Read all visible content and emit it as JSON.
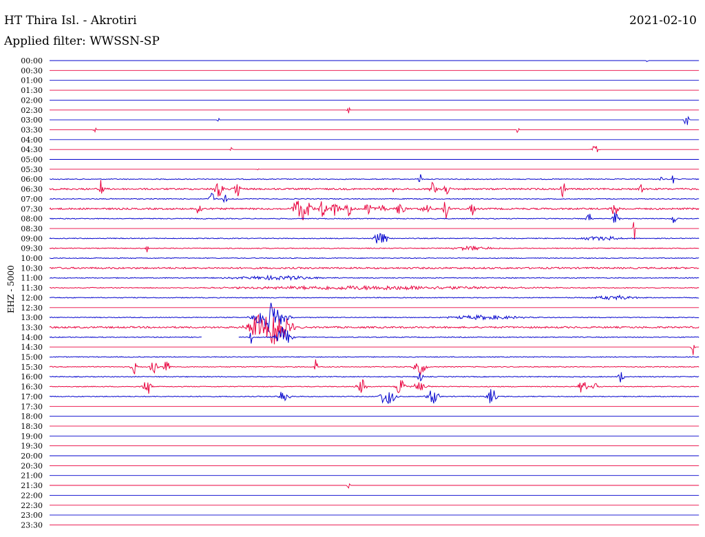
{
  "header": {
    "station": "HT Thira Isl. - Akrotiri",
    "filter": "Applied filter: WWSSN-SP",
    "date": "2021-02-10"
  },
  "chart_data": {
    "type": "helicorder",
    "ylabel": "EHZ - 5000",
    "colors": {
      "blue": "#0000cc",
      "red": "#e8003d"
    },
    "rows": [
      "00:00",
      "00:30",
      "01:00",
      "01:30",
      "02:00",
      "02:30",
      "03:00",
      "03:30",
      "04:00",
      "04:30",
      "05:00",
      "05:30",
      "06:00",
      "06:30",
      "07:00",
      "07:30",
      "08:00",
      "08:30",
      "09:00",
      "09:30",
      "10:00",
      "10:30",
      "11:00",
      "11:30",
      "12:00",
      "12:30",
      "13:00",
      "13:30",
      "14:00",
      "14:30",
      "15:00",
      "15:30",
      "16:00",
      "16:30",
      "17:00",
      "17:30",
      "18:00",
      "18:30",
      "19:00",
      "19:30",
      "20:00",
      "20:30",
      "21:00",
      "21:30",
      "22:00",
      "22:30",
      "23:00",
      "23:30"
    ],
    "row_minutes": 30,
    "noise": [
      0,
      0,
      0,
      0,
      0,
      0,
      0,
      0,
      0,
      0,
      0,
      0,
      1,
      2,
      1,
      2,
      1,
      0,
      1,
      1,
      1,
      2,
      1,
      1,
      1,
      0,
      1,
      2,
      1,
      0,
      1,
      1,
      1,
      1,
      1,
      0,
      0,
      0,
      0,
      0,
      0,
      0,
      0,
      0,
      0,
      0,
      0,
      0
    ],
    "events": [
      {
        "row": 0,
        "t": 0.92,
        "amp": 2,
        "dur": 0.002
      },
      {
        "row": 5,
        "t": 0.46,
        "amp": 8,
        "dur": 0.002
      },
      {
        "row": 6,
        "t": 0.26,
        "amp": 3,
        "dur": 0.002
      },
      {
        "row": 6,
        "t": 0.98,
        "amp": 14,
        "dur": 0.003
      },
      {
        "row": 7,
        "t": 0.07,
        "amp": 6,
        "dur": 0.002
      },
      {
        "row": 7,
        "t": 0.72,
        "amp": 6,
        "dur": 0.002
      },
      {
        "row": 9,
        "t": 0.28,
        "amp": 6,
        "dur": 0.002
      },
      {
        "row": 9,
        "t": 0.84,
        "amp": 10,
        "dur": 0.004
      },
      {
        "row": 11,
        "t": 0.32,
        "amp": 3,
        "dur": 0.002
      },
      {
        "row": 12,
        "t": 0.57,
        "amp": 12,
        "dur": 0.002
      },
      {
        "row": 12,
        "t": 0.94,
        "amp": 6,
        "dur": 0.002
      },
      {
        "row": 12,
        "t": 0.96,
        "amp": 10,
        "dur": 0.002
      },
      {
        "row": 13,
        "t": 0.08,
        "amp": 18,
        "dur": 0.003
      },
      {
        "row": 13,
        "t": 0.26,
        "amp": 12,
        "dur": 0.006
      },
      {
        "row": 13,
        "t": 0.29,
        "amp": 12,
        "dur": 0.005
      },
      {
        "row": 13,
        "t": 0.53,
        "amp": 8,
        "dur": 0.002
      },
      {
        "row": 13,
        "t": 0.59,
        "amp": 10,
        "dur": 0.005
      },
      {
        "row": 13,
        "t": 0.61,
        "amp": 12,
        "dur": 0.004
      },
      {
        "row": 13,
        "t": 0.79,
        "amp": 12,
        "dur": 0.003
      },
      {
        "row": 13,
        "t": 0.91,
        "amp": 8,
        "dur": 0.003
      },
      {
        "row": 14,
        "t": 0.25,
        "amp": 10,
        "dur": 0.004
      },
      {
        "row": 14,
        "t": 0.27,
        "amp": 8,
        "dur": 0.003
      },
      {
        "row": 15,
        "t": 0.23,
        "amp": 10,
        "dur": 0.004
      },
      {
        "row": 15,
        "t": 0.38,
        "amp": 12,
        "dur": 0.005
      },
      {
        "row": 15,
        "t": 0.39,
        "amp": 16,
        "dur": 0.012
      },
      {
        "row": 15,
        "t": 0.42,
        "amp": 12,
        "dur": 0.006
      },
      {
        "row": 15,
        "t": 0.44,
        "amp": 10,
        "dur": 0.006
      },
      {
        "row": 15,
        "t": 0.46,
        "amp": 12,
        "dur": 0.005
      },
      {
        "row": 15,
        "t": 0.49,
        "amp": 10,
        "dur": 0.006
      },
      {
        "row": 15,
        "t": 0.51,
        "amp": 8,
        "dur": 0.008
      },
      {
        "row": 15,
        "t": 0.54,
        "amp": 12,
        "dur": 0.006
      },
      {
        "row": 15,
        "t": 0.58,
        "amp": 6,
        "dur": 0.008
      },
      {
        "row": 15,
        "t": 0.61,
        "amp": 14,
        "dur": 0.004
      },
      {
        "row": 15,
        "t": 0.65,
        "amp": 10,
        "dur": 0.004
      },
      {
        "row": 15,
        "t": 0.87,
        "amp": 10,
        "dur": 0.005
      },
      {
        "row": 16,
        "t": 0.87,
        "amp": 10,
        "dur": 0.005
      },
      {
        "row": 16,
        "t": 0.96,
        "amp": 8,
        "dur": 0.004
      },
      {
        "row": 16,
        "t": 0.83,
        "amp": 10,
        "dur": 0.004
      },
      {
        "row": 17,
        "t": 0.9,
        "amp": 16,
        "dur": 0.002
      },
      {
        "row": 18,
        "t": 0.51,
        "amp": 16,
        "dur": 0.008
      },
      {
        "row": 18,
        "t": 0.85,
        "amp": 3,
        "dur": 0.03
      },
      {
        "row": 19,
        "t": 0.15,
        "amp": 6,
        "dur": 0.002
      },
      {
        "row": 19,
        "t": 0.65,
        "amp": 3,
        "dur": 0.03
      },
      {
        "row": 22,
        "t": 0.35,
        "amp": 3,
        "dur": 0.06
      },
      {
        "row": 23,
        "t": 0.5,
        "amp": 3,
        "dur": 0.2
      },
      {
        "row": 24,
        "t": 0.87,
        "amp": 3,
        "dur": 0.03
      },
      {
        "row": 26,
        "t": 0.34,
        "amp": 22,
        "dur": 0.02
      },
      {
        "row": 26,
        "t": 0.67,
        "amp": 3,
        "dur": 0.05
      },
      {
        "row": 27,
        "t": 0.33,
        "amp": 24,
        "dur": 0.02
      },
      {
        "row": 27,
        "t": 0.35,
        "amp": 22,
        "dur": 0.02
      },
      {
        "row": 28,
        "t": 0.31,
        "amp": 10,
        "dur": 0.002
      },
      {
        "row": 28,
        "t": 0.36,
        "amp": 16,
        "dur": 0.01
      },
      {
        "row": 29,
        "t": 0.99,
        "amp": 12,
        "dur": 0.002
      },
      {
        "row": 31,
        "t": 0.13,
        "amp": 10,
        "dur": 0.004
      },
      {
        "row": 31,
        "t": 0.16,
        "amp": 12,
        "dur": 0.006
      },
      {
        "row": 31,
        "t": 0.18,
        "amp": 10,
        "dur": 0.004
      },
      {
        "row": 31,
        "t": 0.41,
        "amp": 14,
        "dur": 0.002
      },
      {
        "row": 31,
        "t": 0.57,
        "amp": 12,
        "dur": 0.008
      },
      {
        "row": 32,
        "t": 0.57,
        "amp": 8,
        "dur": 0.004
      },
      {
        "row": 32,
        "t": 0.88,
        "amp": 10,
        "dur": 0.004
      },
      {
        "row": 33,
        "t": 0.15,
        "amp": 12,
        "dur": 0.006
      },
      {
        "row": 33,
        "t": 0.48,
        "amp": 12,
        "dur": 0.006
      },
      {
        "row": 33,
        "t": 0.54,
        "amp": 14,
        "dur": 0.006
      },
      {
        "row": 33,
        "t": 0.57,
        "amp": 6,
        "dur": 0.01
      },
      {
        "row": 33,
        "t": 0.82,
        "amp": 10,
        "dur": 0.006
      },
      {
        "row": 33,
        "t": 0.84,
        "amp": 8,
        "dur": 0.004
      },
      {
        "row": 34,
        "t": 0.36,
        "amp": 10,
        "dur": 0.008
      },
      {
        "row": 34,
        "t": 0.52,
        "amp": 16,
        "dur": 0.01
      },
      {
        "row": 34,
        "t": 0.59,
        "amp": 12,
        "dur": 0.008
      },
      {
        "row": 34,
        "t": 0.68,
        "amp": 14,
        "dur": 0.006
      },
      {
        "row": 43,
        "t": 0.46,
        "amp": 6,
        "dur": 0.002
      }
    ],
    "gaps": [
      {
        "row": 28,
        "start": 0.235,
        "end": 0.29
      }
    ]
  }
}
